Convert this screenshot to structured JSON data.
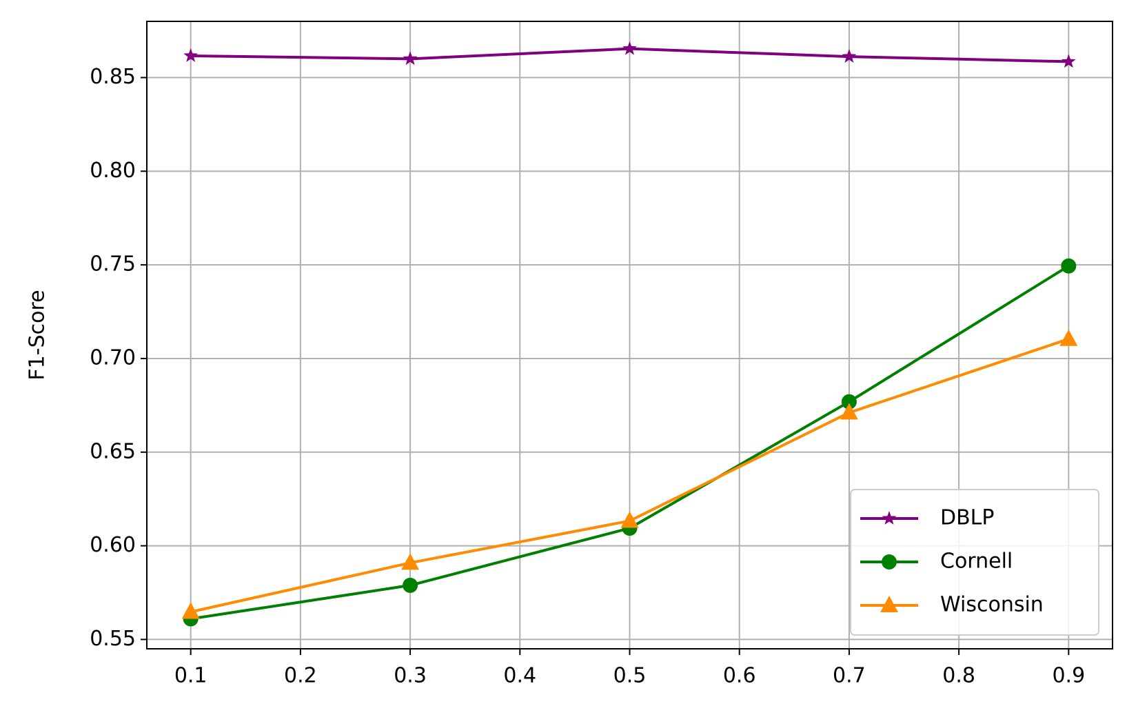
{
  "chart_data": {
    "type": "line",
    "y_label": "F1-Score",
    "x": [
      0.1,
      0.3,
      0.5,
      0.7,
      0.9
    ],
    "series": [
      {
        "name": "DBLP",
        "color": "#800080",
        "marker": "star",
        "values": [
          0.8616,
          0.86,
          0.8654,
          0.8612,
          0.8585
        ]
      },
      {
        "name": "Cornell",
        "color": "#008000",
        "marker": "circle",
        "values": [
          0.561,
          0.5789,
          0.6094,
          0.6769,
          0.7494
        ]
      },
      {
        "name": "Wisconsin",
        "color": "#ff8c00",
        "marker": "triangle",
        "values": [
          0.5647,
          0.5909,
          0.6133,
          0.6711,
          0.7104
        ]
      }
    ],
    "xlim": [
      0.06,
      0.94
    ],
    "ylim": [
      0.545,
      0.88
    ],
    "xticks": [
      0.1,
      0.2,
      0.3,
      0.4,
      0.5,
      0.6,
      0.7,
      0.8,
      0.9
    ],
    "yticks": [
      0.55,
      {
        "value": 0.6,
        "label": "0.60"
      },
      0.65,
      {
        "value": 0.7,
        "label": "0.70"
      },
      0.75,
      {
        "value": 0.8,
        "label": "0.80"
      },
      0.85
    ],
    "grid": true,
    "legend": "lower right"
  }
}
